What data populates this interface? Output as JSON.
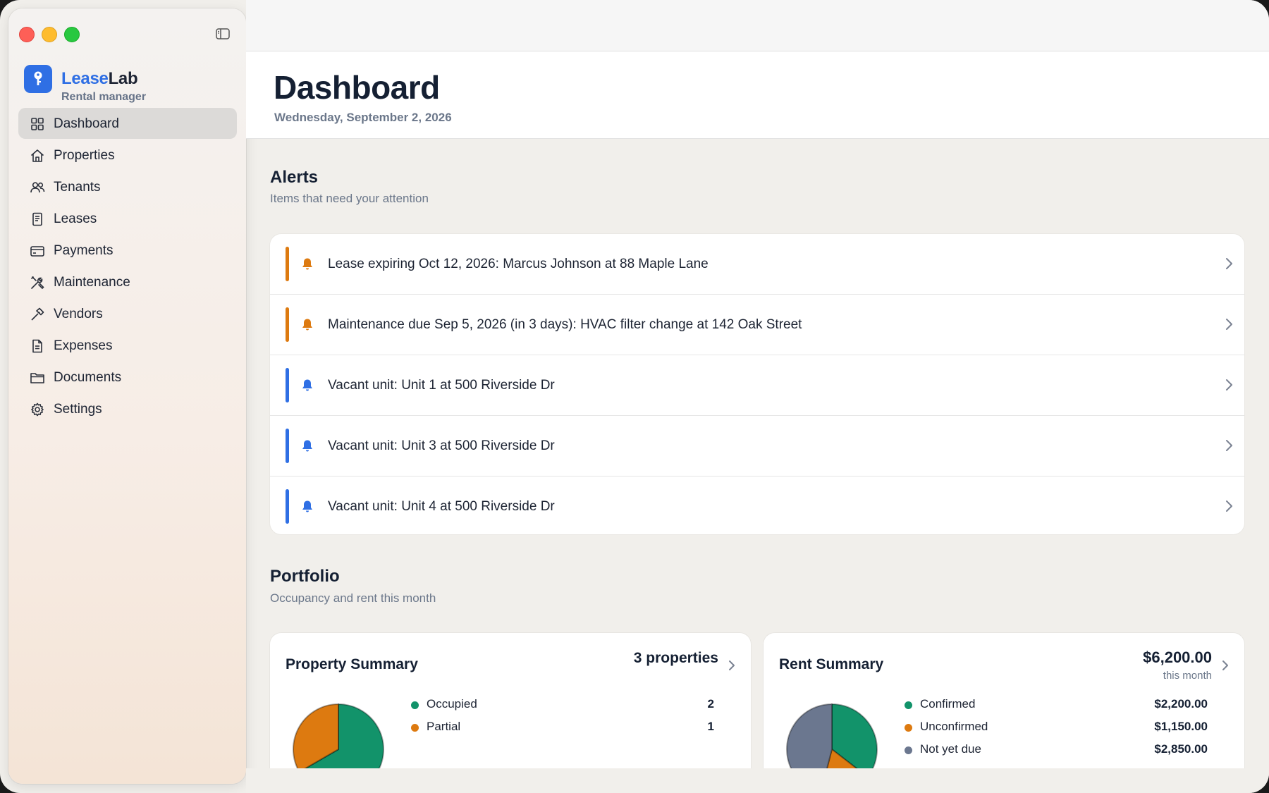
{
  "brand": {
    "name_part1": "Lease",
    "name_part2": "Lab",
    "subtitle": "Rental manager"
  },
  "sidebar": {
    "items": [
      {
        "label": "Dashboard",
        "icon": "grid-icon",
        "active": true
      },
      {
        "label": "Properties",
        "icon": "house-icon"
      },
      {
        "label": "Tenants",
        "icon": "people-icon"
      },
      {
        "label": "Leases",
        "icon": "document-lines-icon"
      },
      {
        "label": "Payments",
        "icon": "credit-card-icon"
      },
      {
        "label": "Maintenance",
        "icon": "tools-icon"
      },
      {
        "label": "Vendors",
        "icon": "hammer-icon"
      },
      {
        "label": "Expenses",
        "icon": "receipt-icon"
      },
      {
        "label": "Documents",
        "icon": "folder-icon"
      },
      {
        "label": "Settings",
        "icon": "gear-icon"
      }
    ]
  },
  "header": {
    "title": "Dashboard",
    "date": "Wednesday, September 2, 2026"
  },
  "alerts": {
    "title": "Alerts",
    "subtitle": "Items that need your attention",
    "items": [
      {
        "text": "Lease expiring Oct 12, 2026: Marcus Johnson at 88 Maple Lane",
        "severity": "warning"
      },
      {
        "text": "Maintenance due Sep 5, 2026 (in 3 days): HVAC filter change at 142 Oak Street",
        "severity": "warning"
      },
      {
        "text": "Vacant unit: Unit 1 at 500 Riverside Dr",
        "severity": "info"
      },
      {
        "text": "Vacant unit: Unit 3 at 500 Riverside Dr",
        "severity": "info"
      },
      {
        "text": "Vacant unit: Unit 4 at 500 Riverside Dr",
        "severity": "info"
      }
    ]
  },
  "portfolio": {
    "title": "Portfolio",
    "subtitle": "Occupancy and rent this month",
    "property_summary": {
      "title": "Property Summary",
      "count": "3 properties",
      "legend": [
        {
          "label": "Occupied",
          "value": "2",
          "color": "#12936a"
        },
        {
          "label": "Partial",
          "value": "1",
          "color": "#dd7a10"
        }
      ]
    },
    "rent_summary": {
      "title": "Rent Summary",
      "amount": "$6,200.00",
      "amount_sub": "this month",
      "legend": [
        {
          "label": "Confirmed",
          "value": "$2,200.00",
          "color": "#12936a"
        },
        {
          "label": "Unconfirmed",
          "value": "$1,150.00",
          "color": "#dd7a10"
        },
        {
          "label": "Not yet due",
          "value": "$2,850.00",
          "color": "#6b778f"
        }
      ]
    }
  },
  "colors": {
    "accent": "#2f6fe4",
    "warning": "#dd7a10",
    "info": "#2f6fe4",
    "success": "#12936a",
    "neutral": "#6b778f"
  }
}
